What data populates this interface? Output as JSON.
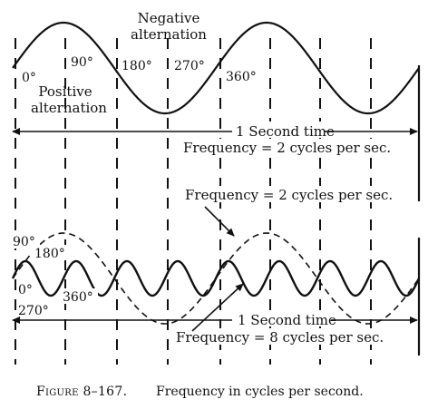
{
  "figure": {
    "caption_number": "Figure 8–167.",
    "caption_text": "Frequency in cycles per second."
  },
  "top_panel": {
    "label_negative": [
      "Negative",
      "alternation"
    ],
    "label_positive": [
      "Positive",
      "alternation"
    ],
    "angles": [
      "0°",
      "90°",
      "180°",
      "270°",
      "360°"
    ],
    "time_label": "1 Second time",
    "frequency_label": "Frequency = 2 cycles per sec."
  },
  "bottom_panel": {
    "frequency_dashed_label": "Frequency = 2 cycles per sec.",
    "angles": [
      "90°",
      "180°",
      "0°",
      "360°",
      "270°"
    ],
    "time_label": "1 Second time",
    "frequency_solid_label": "Frequency = 8 cycles per sec."
  }
}
